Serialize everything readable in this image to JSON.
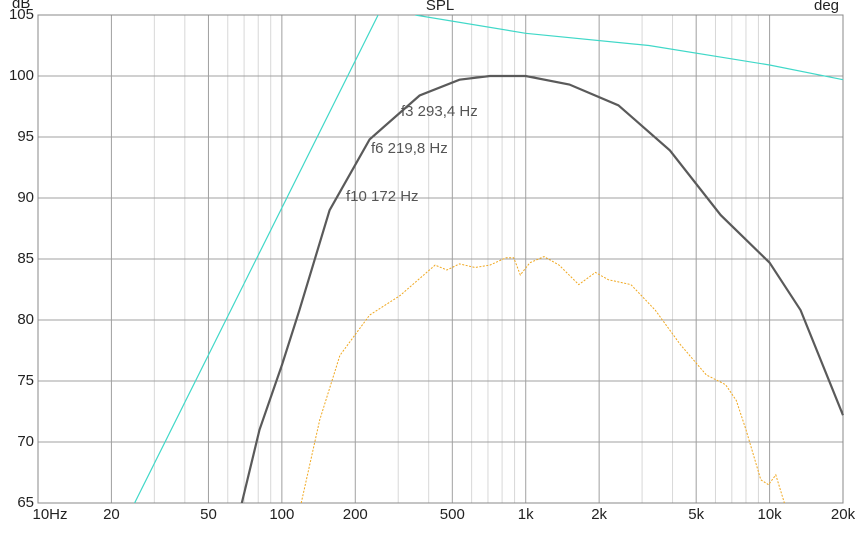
{
  "chart_data": {
    "type": "line",
    "title": "SPL",
    "ylabel": "dB",
    "y2label": "deg",
    "xscale": "log",
    "xlim": [
      10,
      20000
    ],
    "ylim": [
      65,
      105
    ],
    "xticks": [
      {
        "value": 10,
        "label": "10Hz"
      },
      20,
      50,
      100,
      200,
      500,
      {
        "value": 1000,
        "label": "1k"
      },
      {
        "value": 2000,
        "label": "2k"
      },
      {
        "value": 5000,
        "label": "5k"
      },
      {
        "value": 10000,
        "label": "10k"
      },
      {
        "value": 20000,
        "label": "20k"
      }
    ],
    "xminor": [
      30,
      40,
      60,
      70,
      80,
      90,
      300,
      400,
      600,
      700,
      800,
      900,
      3000,
      4000,
      6000,
      7000,
      8000,
      9000
    ],
    "yticks": [
      65,
      70,
      75,
      80,
      85,
      90,
      95,
      100,
      105
    ],
    "grid": true,
    "series": [
      {
        "color": "#5a5a5a",
        "dash": false,
        "x": [
          68.5,
          81,
          100,
          118,
          157,
          229,
          367,
          535,
          713,
          1000,
          1510,
          2400,
          3900,
          6300,
          10000,
          13400,
          20000
        ],
        "values": [
          65,
          71.0,
          76.3,
          80.8,
          89.0,
          94.8,
          98.4,
          99.7,
          100,
          100,
          99.3,
          97.6,
          93.9,
          88.6,
          84.7,
          80.8,
          72.2
        ]
      },
      {
        "color": "#f0a820",
        "dash": true,
        "x": [
          120,
          143,
          173,
          229,
          305,
          425,
          475,
          535,
          620,
          713,
          830,
          893,
          950,
          1040,
          1190,
          1370,
          1650,
          1930,
          2180,
          2700,
          3400,
          4300,
          5500,
          6600,
          7300,
          8000,
          9200,
          9900,
          10600,
          11500
        ],
        "values": [
          65,
          71.8,
          77.1,
          80.4,
          82.0,
          84.5,
          84.1,
          84.6,
          84.3,
          84.5,
          85.1,
          85.1,
          83.7,
          84.7,
          85.2,
          84.5,
          82.9,
          83.9,
          83.3,
          82.9,
          80.8,
          78.0,
          75.5,
          74.7,
          73.4,
          71.0,
          66.9,
          66.5,
          67.3,
          65
        ]
      },
      {
        "color": "#40d8c8",
        "dash": false,
        "x": [
          24.9,
          248
        ],
        "values": [
          65,
          105
        ]
      },
      {
        "color": "#40d8c8",
        "dash": false,
        "x": [
          352,
          1000,
          3200,
          10000,
          20000
        ],
        "values": [
          105,
          103.5,
          102.5,
          100.9,
          99.7
        ]
      }
    ],
    "annotations": [
      "f3 293,4 Hz",
      "f6 219,8 Hz",
      "f10 172 Hz"
    ]
  }
}
